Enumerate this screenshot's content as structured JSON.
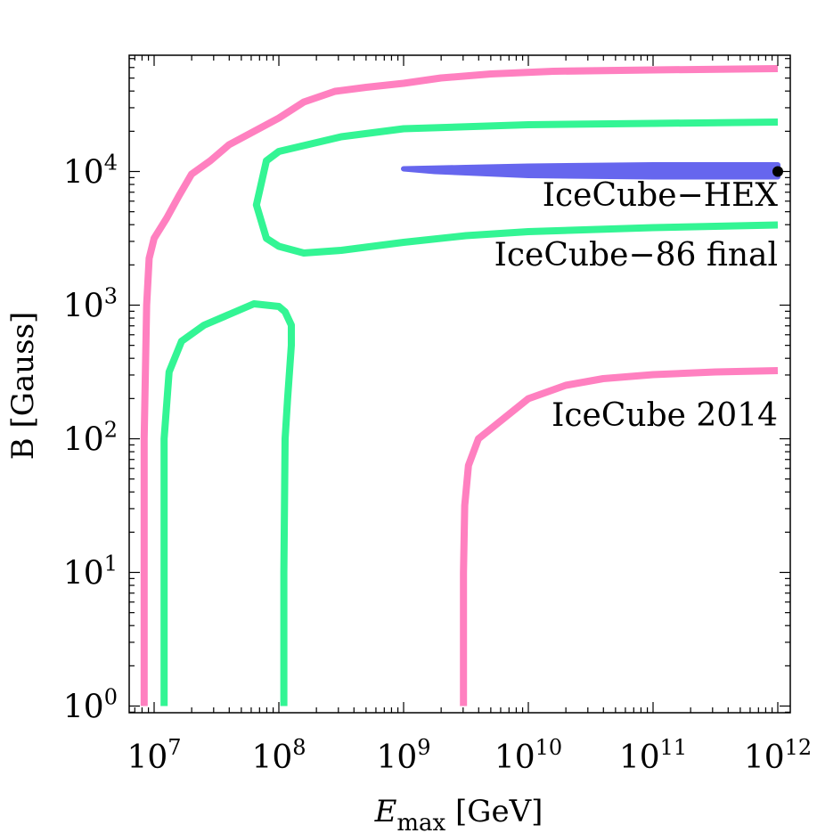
{
  "chart_data": {
    "type": "line",
    "xscale": "log",
    "yscale": "log",
    "xlim_log10": [
      6.8,
      12.1
    ],
    "ylim_log10": [
      -0.05,
      4.87
    ],
    "xticks": [
      {
        "base": "10",
        "exp": "7",
        "log10": 7
      },
      {
        "base": "10",
        "exp": "8",
        "log10": 8
      },
      {
        "base": "10",
        "exp": "9",
        "log10": 9
      },
      {
        "base": "10",
        "exp": "10",
        "log10": 10
      },
      {
        "base": "10",
        "exp": "11",
        "log10": 11
      },
      {
        "base": "10",
        "exp": "12",
        "log10": 12
      }
    ],
    "yticks": [
      {
        "base": "10",
        "exp": "0",
        "log10": 0
      },
      {
        "base": "10",
        "exp": "1",
        "log10": 1
      },
      {
        "base": "10",
        "exp": "2",
        "log10": 2
      },
      {
        "base": "10",
        "exp": "3",
        "log10": 3
      },
      {
        "base": "10",
        "exp": "4",
        "log10": 4
      }
    ],
    "xlabel": {
      "main": "E",
      "sub": "max",
      "rest": " [GeV]"
    },
    "ylabel": "B [Gauss]",
    "grid": false,
    "series": [
      {
        "name": "IceCube 2014",
        "color": "#ff80c0",
        "closed": false,
        "points_log10": [
          [
            6.92,
            0.0
          ],
          [
            6.92,
            1.0
          ],
          [
            6.92,
            2.0
          ],
          [
            6.94,
            3.0
          ],
          [
            6.96,
            3.35
          ],
          [
            7.0,
            3.5
          ],
          [
            7.1,
            3.65
          ],
          [
            7.2,
            3.82
          ],
          [
            7.3,
            3.98
          ],
          [
            7.45,
            4.08
          ],
          [
            7.6,
            4.2
          ],
          [
            7.8,
            4.3
          ],
          [
            8.0,
            4.4
          ],
          [
            8.2,
            4.52
          ],
          [
            8.45,
            4.6
          ],
          [
            8.7,
            4.63
          ],
          [
            9.0,
            4.66
          ],
          [
            9.3,
            4.7
          ],
          [
            9.7,
            4.73
          ],
          [
            10.2,
            4.75
          ],
          [
            11.0,
            4.76
          ],
          [
            12.0,
            4.77
          ]
        ]
      },
      {
        "name": "IceCube 2014",
        "color": "#ff80c0",
        "closed": false,
        "points_log10": [
          [
            9.48,
            0.0
          ],
          [
            9.48,
            1.0
          ],
          [
            9.49,
            1.5
          ],
          [
            9.52,
            1.8
          ],
          [
            9.6,
            2.0
          ],
          [
            9.8,
            2.15
          ],
          [
            10.0,
            2.3
          ],
          [
            10.3,
            2.4
          ],
          [
            10.6,
            2.45
          ],
          [
            11.0,
            2.48
          ],
          [
            11.5,
            2.5
          ],
          [
            12.0,
            2.51
          ]
        ]
      },
      {
        "name": "IceCube-86 final",
        "color": "#33f594",
        "closed": false,
        "points_log10": [
          [
            7.08,
            0.0
          ],
          [
            7.08,
            1.0
          ],
          [
            7.08,
            2.0
          ],
          [
            7.12,
            2.5
          ],
          [
            7.22,
            2.73
          ],
          [
            7.4,
            2.85
          ],
          [
            7.6,
            2.93
          ],
          [
            7.8,
            3.01
          ],
          [
            8.0,
            2.99
          ],
          [
            8.05,
            2.95
          ],
          [
            8.1,
            2.85
          ],
          [
            8.1,
            2.7
          ],
          [
            8.07,
            2.3
          ],
          [
            8.05,
            2.0
          ],
          [
            8.04,
            1.0
          ],
          [
            8.04,
            0.0
          ]
        ]
      },
      {
        "name": "IceCube-86 final",
        "color": "#33f594",
        "closed": false,
        "points_log10": [
          [
            12.0,
            4.37
          ],
          [
            11.0,
            4.36
          ],
          [
            10.0,
            4.35
          ],
          [
            9.0,
            4.32
          ],
          [
            8.5,
            4.26
          ],
          [
            8.0,
            4.15
          ],
          [
            7.9,
            4.08
          ],
          [
            7.82,
            3.75
          ],
          [
            7.9,
            3.5
          ],
          [
            8.0,
            3.44
          ],
          [
            8.2,
            3.39
          ],
          [
            8.5,
            3.41
          ],
          [
            9.0,
            3.47
          ],
          [
            9.5,
            3.52
          ],
          [
            10.0,
            3.55
          ],
          [
            11.0,
            3.58
          ],
          [
            12.0,
            3.6
          ]
        ]
      },
      {
        "name": "IceCube−HEX",
        "color": "#6666ee",
        "closed": true,
        "points_log10": [
          [
            12.0,
            4.05
          ],
          [
            11.0,
            4.05
          ],
          [
            10.0,
            4.04
          ],
          [
            9.5,
            4.03
          ],
          [
            9.0,
            4.02
          ],
          [
            9.25,
            4.0
          ],
          [
            9.5,
            3.99
          ],
          [
            10.0,
            3.97
          ],
          [
            11.0,
            3.96
          ],
          [
            12.0,
            3.96
          ]
        ]
      }
    ],
    "marker": {
      "x_log10": 12.0,
      "y_log10": 4.0,
      "color": "#000000"
    },
    "annotations": [
      {
        "text": "IceCube−HEX",
        "color": "#6666ee"
      },
      {
        "text": "IceCube−86 final",
        "color": "#33f594"
      },
      {
        "text": "IceCube 2014",
        "color": "#ff80c0"
      }
    ]
  }
}
